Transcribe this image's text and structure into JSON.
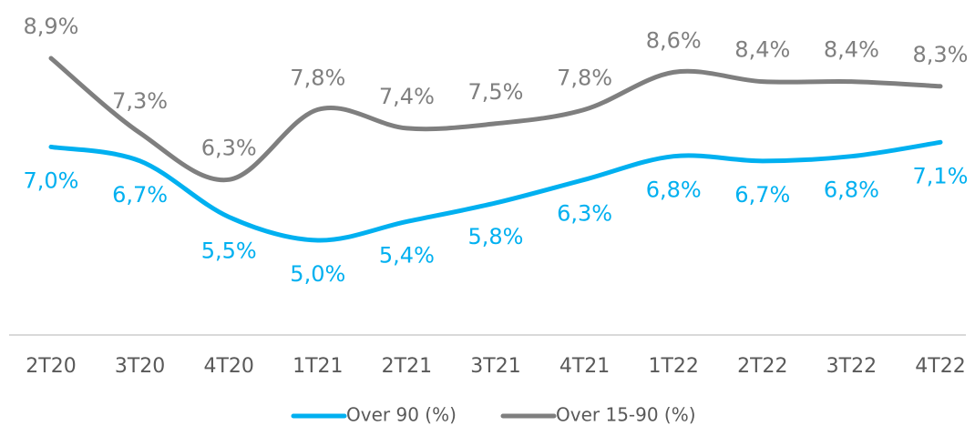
{
  "chart_data": {
    "type": "line",
    "categories": [
      "2T20",
      "3T20",
      "4T20",
      "1T21",
      "2T21",
      "3T21",
      "4T21",
      "1T22",
      "2T22",
      "3T22",
      "4T22"
    ],
    "series": [
      {
        "name": "Over 90 (%)",
        "color": "#00b0f0",
        "values": [
          7.0,
          6.7,
          5.5,
          5.0,
          5.4,
          5.8,
          6.3,
          6.8,
          6.7,
          6.8,
          7.1
        ],
        "value_labels": [
          "7,0%",
          "6,7%",
          "5,5%",
          "5,0%",
          "5,4%",
          "5,8%",
          "6,3%",
          "6,8%",
          "6,7%",
          "6,8%",
          "7,1%"
        ]
      },
      {
        "name": "Over 15-90 (%)",
        "color": "#7f7f7f",
        "values": [
          8.9,
          7.3,
          6.3,
          7.8,
          7.4,
          7.5,
          7.8,
          8.6,
          8.4,
          8.4,
          8.3
        ],
        "value_labels": [
          "8,9%",
          "7,3%",
          "6,3%",
          "7,8%",
          "7,4%",
          "7,5%",
          "7,8%",
          "8,6%",
          "8,4%",
          "8,4%",
          "8,3%"
        ]
      }
    ],
    "legend": "bottom"
  }
}
